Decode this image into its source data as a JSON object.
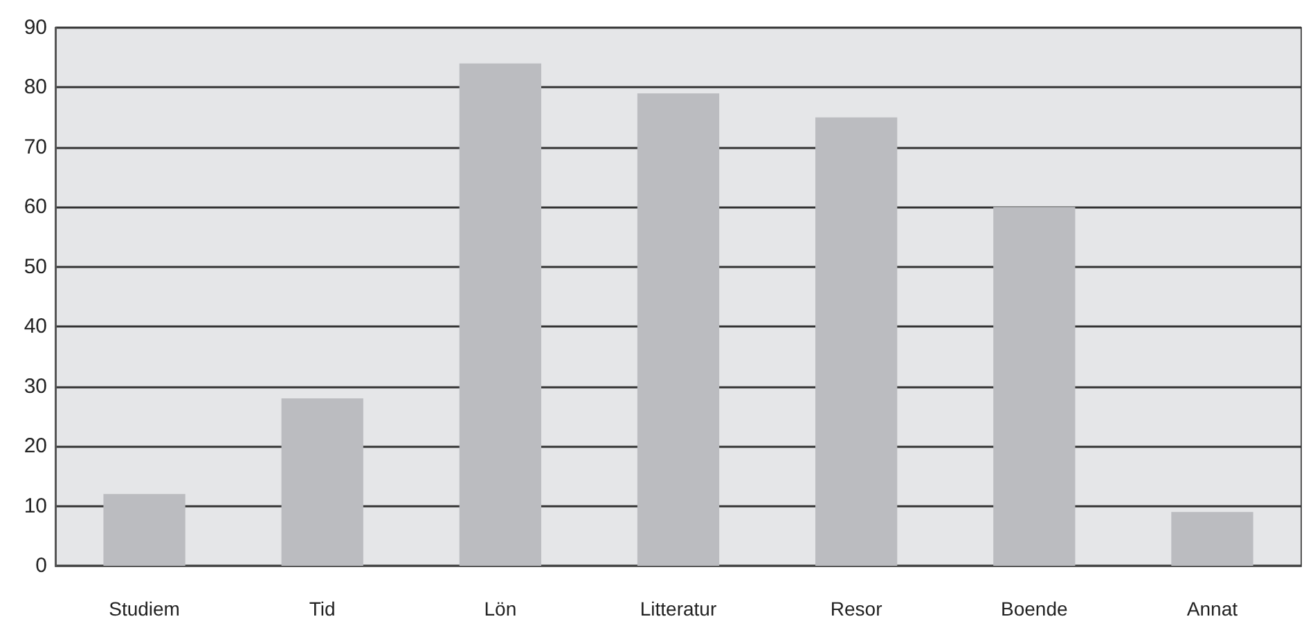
{
  "chart_data": {
    "type": "bar",
    "categories": [
      "Studiem",
      "Tid",
      "Lön",
      "Litteratur",
      "Resor",
      "Boende",
      "Annat"
    ],
    "values": [
      12,
      28,
      84,
      79,
      75,
      60,
      9
    ],
    "color": "#bbbcc0",
    "ylim": [
      0,
      90
    ],
    "yticks": [
      0,
      10,
      20,
      30,
      40,
      50,
      60,
      70,
      80,
      90
    ],
    "grid": "y"
  }
}
